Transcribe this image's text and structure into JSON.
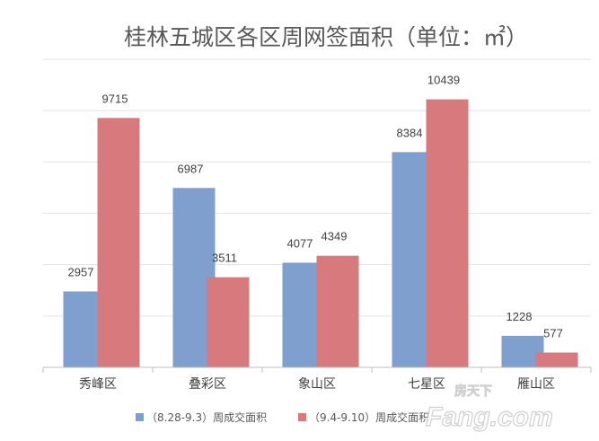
{
  "chart_data": {
    "type": "bar",
    "title": "桂林五城区各区周网签面积（单位：㎡）",
    "categories": [
      "秀峰区",
      "叠彩区",
      "象山区",
      "七星区",
      "雁山区"
    ],
    "series": [
      {
        "name": "（8.28-9.3）周成交面积",
        "color": "#7f9fcf",
        "values": [
          2957,
          6987,
          4077,
          8384,
          1228
        ]
      },
      {
        "name": "（9.4-9.10）周成交面积",
        "color": "#d87a7d",
        "values": [
          9715,
          3511,
          4349,
          10439,
          577
        ]
      }
    ],
    "ylim": [
      0,
      12000
    ],
    "grid": true,
    "show_y_axis_labels": false,
    "data_labels": true,
    "legend_position": "bottom"
  },
  "watermark": {
    "small": "房天下",
    "large": "Fang.com"
  }
}
